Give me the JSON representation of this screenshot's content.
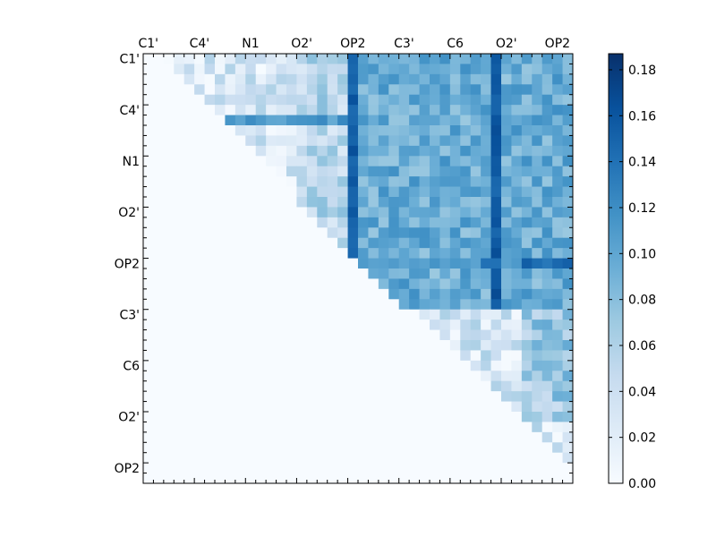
{
  "chart_data": {
    "type": "heatmap",
    "colormap": "Blues",
    "colors": {
      "low": "#f7fbff",
      "high": "#08306b",
      "stops": [
        "#f7fbff",
        "#deebf7",
        "#c6dbef",
        "#9ecae1",
        "#6baed6",
        "#4292c6",
        "#2171b5",
        "#08519c",
        "#08306b"
      ]
    },
    "grid_size": 42,
    "x_tick_labels": [
      "C1'",
      "C4'",
      "N1",
      "O2'",
      "OP2",
      "C3'",
      "C6",
      "O2'",
      "OP2"
    ],
    "y_tick_labels": [
      "C1'",
      "C4'",
      "N1",
      "O2'",
      "OP2",
      "C3'",
      "C6",
      "O2'",
      "OP2"
    ],
    "label_every": 5,
    "x_axis_position": "top",
    "colorbar": {
      "range": [
        0.0,
        0.187
      ],
      "ticks": [
        0.0,
        0.02,
        0.04,
        0.06,
        0.08,
        0.1,
        0.12,
        0.14,
        0.16,
        0.18
      ],
      "tick_labels": [
        "0.00",
        "0.02",
        "0.04",
        "0.06",
        "0.08",
        "0.10",
        "0.12",
        "0.14",
        "0.16",
        "0.18"
      ]
    },
    "matrix_description": "upper-triangular; lower triangle is zero",
    "value_model": {
      "near_diagonal_band": 0.03,
      "upper_right_block_rows": [
        0,
        25
      ],
      "upper_right_block_cols": [
        20,
        42
      ],
      "upper_right_block_level": 0.095,
      "bottom_right_rows": [
        25,
        42
      ],
      "bottom_right_level": 0.035,
      "strong_columns": [
        20,
        34
      ],
      "strong_column_level": 0.16,
      "strong_row": 20,
      "strong_row_level": 0.11,
      "strong_row_end_level": 0.15
    },
    "grid": false,
    "title": "",
    "xlabel": "",
    "ylabel": ""
  }
}
